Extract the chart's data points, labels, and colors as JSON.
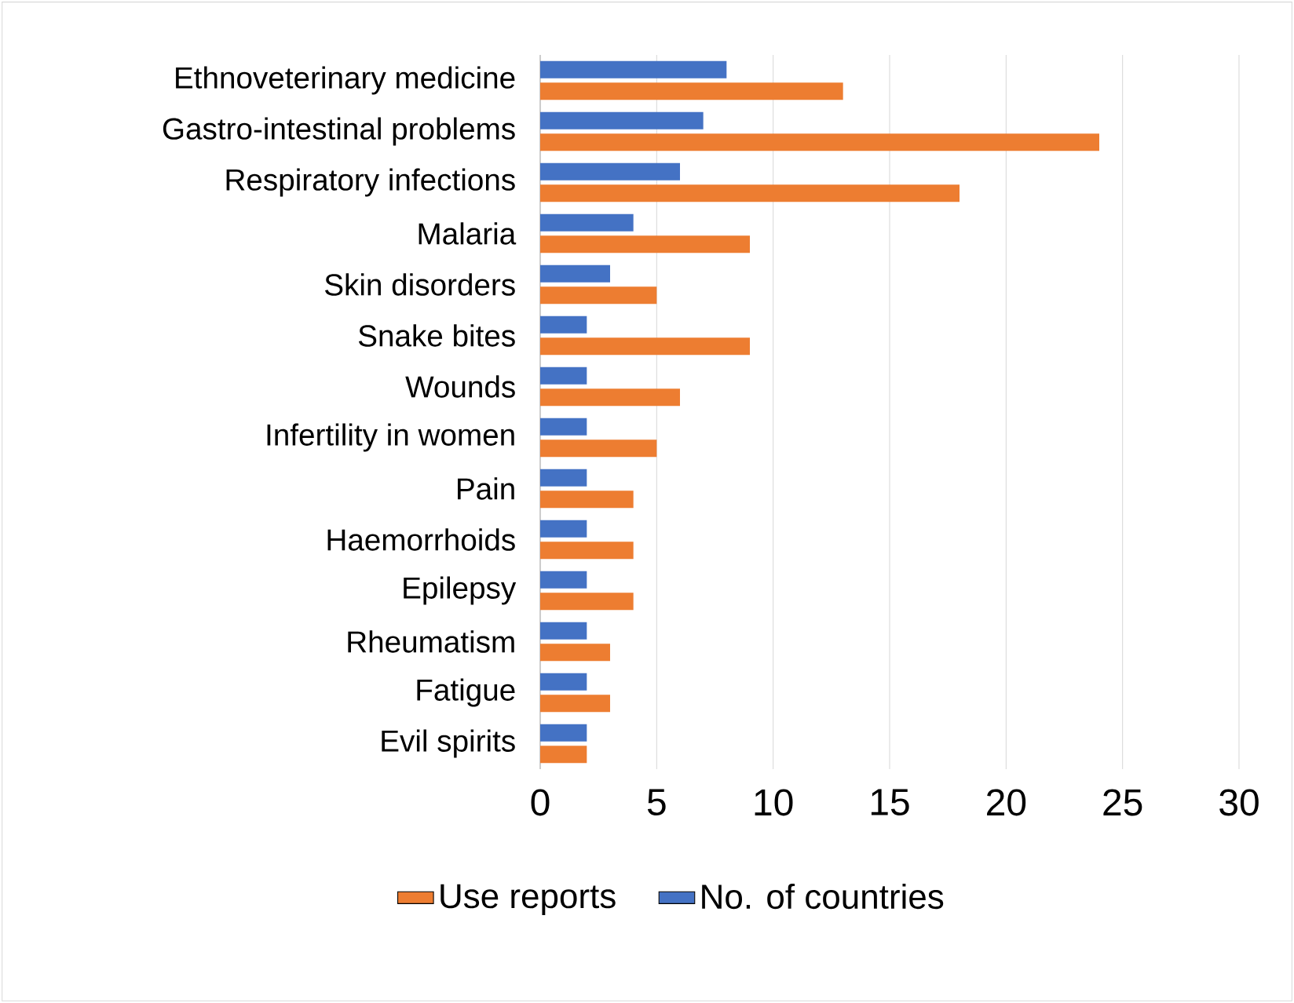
{
  "chart_data": {
    "type": "bar",
    "orientation": "horizontal",
    "categories": [
      "Ethnoveterinary medicine",
      "Gastro-intestinal problems",
      "Respiratory infections",
      "Malaria",
      "Skin disorders",
      "Snake bites",
      "Wounds",
      "Infertility in women",
      "Pain",
      "Haemorrhoids",
      "Epilepsy",
      "Rheumatism",
      "Fatigue",
      "Evil spirits"
    ],
    "series": [
      {
        "name": "Use reports",
        "color": "#ed7d31",
        "values": [
          13,
          24,
          18,
          9,
          5,
          9,
          6,
          5,
          4,
          4,
          4,
          3,
          3,
          2
        ]
      },
      {
        "name": "No. of countries",
        "color": "#4472c4",
        "values": [
          8,
          7,
          6,
          4,
          3,
          2,
          2,
          2,
          2,
          2,
          2,
          2,
          2,
          2
        ]
      }
    ],
    "xlim": [
      0,
      30
    ],
    "xticks": [
      0,
      5,
      10,
      15,
      20,
      25,
      30
    ],
    "grid": "x",
    "legend": "bottom"
  }
}
